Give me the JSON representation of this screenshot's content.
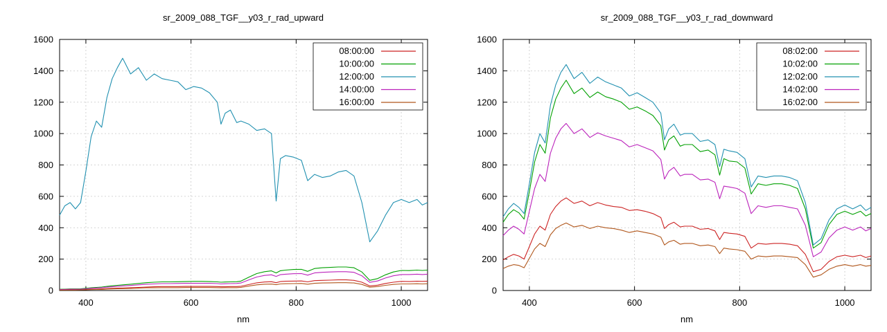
{
  "page": {
    "background": "#ffffff",
    "frame_color": "#000000",
    "grid_color": "#c8c8c8"
  },
  "chart_data": [
    {
      "type": "line",
      "title": "sr_2009_088_TGF__y03_r_rad_upward",
      "xlabel": "nm",
      "ylabel": "",
      "xlim": [
        350,
        1050
      ],
      "ylim": [
        0,
        1600
      ],
      "xticks": [
        400,
        600,
        800,
        1000
      ],
      "yticks": [
        0,
        200,
        400,
        600,
        800,
        1000,
        1200,
        1400,
        1600
      ],
      "grid": true,
      "legend_position": "top-right",
      "x": [
        350,
        360,
        370,
        380,
        390,
        400,
        410,
        420,
        430,
        440,
        450,
        460,
        470,
        485,
        500,
        515,
        530,
        545,
        560,
        575,
        590,
        605,
        620,
        635,
        650,
        657,
        665,
        675,
        687,
        695,
        710,
        725,
        740,
        753,
        762,
        770,
        780,
        795,
        810,
        822,
        835,
        850,
        865,
        880,
        895,
        910,
        925,
        940,
        955,
        970,
        985,
        1000,
        1015,
        1030,
        1040,
        1050
      ],
      "series": [
        {
          "name": "08:00:00",
          "color": "#cc2222",
          "values": [
            4,
            4,
            5,
            5,
            5,
            6,
            8,
            9,
            10,
            12,
            14,
            15,
            16,
            18,
            20,
            22,
            24,
            25,
            25,
            25,
            26,
            26,
            26,
            26,
            25,
            24,
            24,
            25,
            25,
            27,
            38,
            49,
            54,
            56,
            50,
            57,
            59,
            60,
            61,
            55,
            63,
            65,
            66,
            68,
            68,
            65,
            53,
            29,
            34,
            45,
            53,
            58,
            57,
            59,
            58,
            59
          ]
        },
        {
          "name": "10:00:00",
          "color": "#00a000",
          "values": [
            8,
            9,
            10,
            10,
            11,
            14,
            17,
            20,
            22,
            26,
            30,
            33,
            36,
            40,
            45,
            50,
            53,
            55,
            55,
            56,
            57,
            58,
            58,
            57,
            55,
            53,
            54,
            55,
            56,
            60,
            85,
            108,
            120,
            125,
            112,
            126,
            130,
            134,
            135,
            122,
            140,
            145,
            147,
            150,
            150,
            145,
            118,
            65,
            76,
            100,
            118,
            128,
            127,
            130,
            128,
            130
          ]
        },
        {
          "name": "12:00:00",
          "color": "#2090b0",
          "values": [
            480,
            540,
            560,
            520,
            560,
            760,
            980,
            1080,
            1040,
            1230,
            1350,
            1420,
            1480,
            1380,
            1420,
            1340,
            1380,
            1350,
            1340,
            1330,
            1280,
            1300,
            1290,
            1260,
            1200,
            1060,
            1130,
            1150,
            1070,
            1080,
            1060,
            1020,
            1030,
            1000,
            570,
            840,
            860,
            850,
            830,
            700,
            740,
            720,
            730,
            755,
            765,
            730,
            560,
            310,
            380,
            480,
            560,
            580,
            560,
            580,
            545,
            560
          ]
        },
        {
          "name": "14:00:00",
          "color": "#bb22bb",
          "values": [
            6,
            7,
            8,
            8,
            9,
            11,
            14,
            16,
            18,
            21,
            24,
            27,
            29,
            32,
            36,
            40,
            42,
            44,
            44,
            45,
            46,
            46,
            46,
            46,
            44,
            42,
            43,
            44,
            45,
            48,
            68,
            86,
            96,
            100,
            90,
            101,
            104,
            107,
            108,
            98,
            112,
            116,
            118,
            120,
            120,
            116,
            94,
            52,
            61,
            80,
            94,
            102,
            102,
            104,
            102,
            104
          ]
        },
        {
          "name": "16:00:00",
          "color": "#b0561b",
          "values": [
            3,
            3,
            3,
            3,
            4,
            5,
            6,
            7,
            7,
            9,
            10,
            11,
            12,
            13,
            15,
            17,
            17,
            18,
            18,
            18,
            19,
            19,
            19,
            19,
            18,
            17,
            18,
            18,
            18,
            20,
            28,
            36,
            40,
            41,
            37,
            42,
            43,
            44,
            45,
            40,
            46,
            48,
            49,
            50,
            50,
            48,
            39,
            21,
            25,
            33,
            39,
            42,
            42,
            43,
            42,
            43
          ]
        }
      ]
    },
    {
      "type": "line",
      "title": "sr_2009_088_TGF__y03_r_rad_downward",
      "xlabel": "nm",
      "ylabel": "",
      "xlim": [
        350,
        1050
      ],
      "ylim": [
        0,
        1600
      ],
      "xticks": [
        400,
        600,
        800,
        1000
      ],
      "yticks": [
        0,
        200,
        400,
        600,
        800,
        1000,
        1200,
        1400,
        1600
      ],
      "grid": true,
      "legend_position": "top-right",
      "x": [
        350,
        360,
        370,
        380,
        390,
        400,
        410,
        420,
        430,
        440,
        450,
        460,
        470,
        485,
        500,
        515,
        530,
        545,
        560,
        575,
        590,
        605,
        620,
        635,
        650,
        657,
        665,
        675,
        687,
        695,
        710,
        725,
        740,
        753,
        762,
        770,
        780,
        795,
        810,
        822,
        835,
        850,
        865,
        880,
        895,
        910,
        925,
        940,
        955,
        970,
        985,
        1000,
        1015,
        1030,
        1040,
        1050
      ],
      "series": [
        {
          "name": "08:02:00",
          "color": "#cc2222",
          "values": [
            195,
            215,
            230,
            220,
            200,
            280,
            360,
            410,
            385,
            485,
            535,
            570,
            590,
            555,
            570,
            540,
            560,
            545,
            535,
            530,
            510,
            515,
            505,
            490,
            465,
            395,
            420,
            435,
            405,
            410,
            410,
            390,
            395,
            380,
            325,
            370,
            365,
            360,
            345,
            270,
            300,
            295,
            300,
            300,
            295,
            285,
            230,
            120,
            135,
            185,
            215,
            225,
            215,
            225,
            210,
            220
          ]
        },
        {
          "name": "10:02:00",
          "color": "#00a000",
          "values": [
            435,
            485,
            515,
            495,
            455,
            630,
            820,
            930,
            875,
            1100,
            1220,
            1290,
            1340,
            1255,
            1290,
            1230,
            1265,
            1235,
            1220,
            1200,
            1155,
            1170,
            1145,
            1115,
            1050,
            895,
            960,
            985,
            920,
            930,
            930,
            885,
            895,
            865,
            735,
            840,
            825,
            820,
            780,
            615,
            680,
            670,
            680,
            680,
            670,
            650,
            520,
            270,
            305,
            420,
            485,
            505,
            485,
            505,
            475,
            490
          ]
        },
        {
          "name": "12:02:00",
          "color": "#2090b0",
          "values": [
            470,
            520,
            555,
            530,
            490,
            680,
            880,
            1000,
            940,
            1180,
            1310,
            1390,
            1440,
            1350,
            1390,
            1320,
            1360,
            1330,
            1310,
            1290,
            1240,
            1260,
            1230,
            1200,
            1130,
            960,
            1030,
            1060,
            990,
            1000,
            1000,
            950,
            960,
            930,
            790,
            900,
            890,
            880,
            840,
            660,
            730,
            720,
            730,
            730,
            720,
            700,
            560,
            290,
            330,
            450,
            520,
            545,
            520,
            545,
            510,
            530
          ]
        },
        {
          "name": "14:02:00",
          "color": "#bb22bb",
          "values": [
            350,
            385,
            410,
            390,
            360,
            505,
            650,
            740,
            695,
            875,
            970,
            1030,
            1065,
            1000,
            1030,
            975,
            1005,
            985,
            970,
            955,
            915,
            930,
            910,
            890,
            835,
            710,
            760,
            785,
            730,
            740,
            740,
            705,
            710,
            690,
            585,
            665,
            660,
            650,
            620,
            490,
            540,
            530,
            540,
            540,
            530,
            520,
            415,
            215,
            245,
            335,
            385,
            405,
            385,
            405,
            380,
            395
          ]
        },
        {
          "name": "16:02:00",
          "color": "#b0561b",
          "values": [
            140,
            155,
            165,
            160,
            145,
            205,
            265,
            300,
            280,
            355,
            395,
            415,
            430,
            405,
            415,
            395,
            410,
            400,
            395,
            385,
            370,
            380,
            370,
            360,
            340,
            290,
            310,
            320,
            295,
            300,
            300,
            285,
            290,
            280,
            235,
            270,
            265,
            260,
            250,
            200,
            220,
            215,
            220,
            220,
            215,
            210,
            165,
            85,
            100,
            135,
            155,
            165,
            155,
            165,
            155,
            160
          ]
        }
      ]
    }
  ]
}
